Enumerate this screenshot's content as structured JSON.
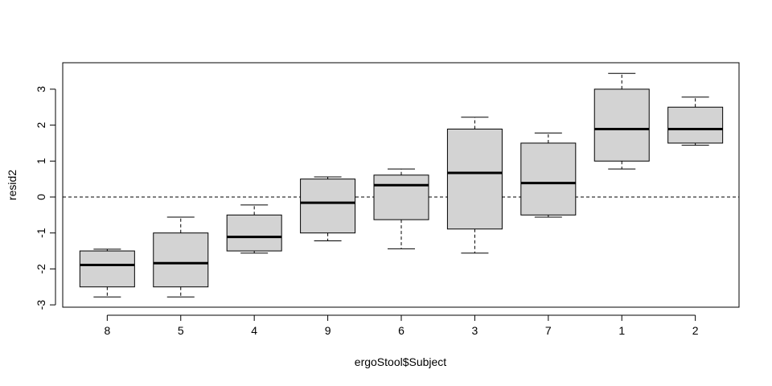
{
  "chart_data": {
    "type": "boxplot",
    "title": "",
    "xlabel": "ergoStool$Subject",
    "ylabel": "resid2",
    "ylim": [
      -3,
      3.5
    ],
    "yticks": [
      -3,
      -2,
      -1,
      0,
      1,
      2,
      3
    ],
    "yticklabels": [
      "-3",
      "-2",
      "-1",
      "0",
      "1",
      "2",
      "3"
    ],
    "reference_line": {
      "y": 0,
      "style": "dashed",
      "color": "#000000"
    },
    "box_fill": "#d3d3d3",
    "categories": [
      "8",
      "5",
      "4",
      "9",
      "6",
      "3",
      "7",
      "1",
      "2"
    ],
    "boxes": [
      {
        "category": "8",
        "min": -2.78,
        "q1": -2.5,
        "median": -1.89,
        "q3": -1.5,
        "max": -1.45
      },
      {
        "category": "5",
        "min": -2.78,
        "q1": -2.5,
        "median": -1.84,
        "q3": -1.0,
        "max": -0.56
      },
      {
        "category": "4",
        "min": -1.56,
        "q1": -1.5,
        "median": -1.11,
        "q3": -0.5,
        "max": -0.22
      },
      {
        "category": "9",
        "min": -1.22,
        "q1": -1.0,
        "median": -0.16,
        "q3": 0.5,
        "max": 0.56
      },
      {
        "category": "6",
        "min": -1.44,
        "q1": -0.63,
        "median": 0.33,
        "q3": 0.61,
        "max": 0.78
      },
      {
        "category": "3",
        "min": -1.56,
        "q1": -0.89,
        "median": 0.67,
        "q3": 1.89,
        "max": 2.22
      },
      {
        "category": "7",
        "min": -0.56,
        "q1": -0.5,
        "median": 0.39,
        "q3": 1.5,
        "max": 1.78
      },
      {
        "category": "1",
        "min": 0.78,
        "q1": 1.0,
        "median": 1.89,
        "q3": 3.0,
        "max": 3.44
      },
      {
        "category": "2",
        "min": 1.44,
        "q1": 1.5,
        "median": 1.89,
        "q3": 2.5,
        "max": 2.78
      }
    ]
  }
}
